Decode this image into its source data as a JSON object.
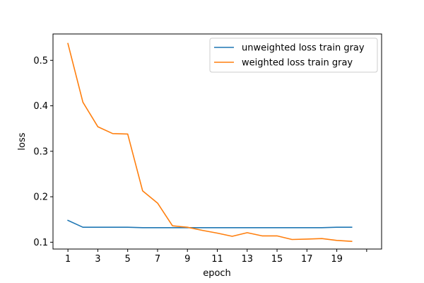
{
  "chart_data": {
    "type": "line",
    "title": "",
    "xlabel": "epoch",
    "ylabel": "loss",
    "xlim": [
      0,
      22
    ],
    "ylim": [
      0.085,
      0.558
    ],
    "x_ticks": [
      1,
      3,
      5,
      7,
      9,
      11,
      13,
      15,
      17,
      19,
      21
    ],
    "x_tick_labels": [
      "1",
      "3",
      "5",
      "7",
      "9",
      "11",
      "13",
      "15",
      "17",
      "19",
      ""
    ],
    "y_ticks": [
      0.1,
      0.2,
      0.3,
      0.4,
      0.5
    ],
    "y_tick_labels": [
      "0.1",
      "0.2",
      "0.3",
      "0.4",
      "0.5"
    ],
    "grid": false,
    "legend_position": "upper right",
    "x": [
      1,
      2,
      3,
      4,
      5,
      6,
      7,
      8,
      9,
      10,
      11,
      12,
      13,
      14,
      15,
      16,
      17,
      18,
      19,
      20
    ],
    "series": [
      {
        "name": "unweighted loss train gray",
        "color": "#1f77b4",
        "values": [
          0.148,
          0.133,
          0.133,
          0.133,
          0.133,
          0.132,
          0.132,
          0.132,
          0.132,
          0.132,
          0.132,
          0.132,
          0.132,
          0.132,
          0.132,
          0.132,
          0.132,
          0.132,
          0.133,
          0.133
        ]
      },
      {
        "name": "weighted loss train gray",
        "color": "#ff7f0e",
        "values": [
          0.537,
          0.408,
          0.354,
          0.339,
          0.338,
          0.213,
          0.186,
          0.136,
          0.133,
          0.126,
          0.12,
          0.113,
          0.121,
          0.114,
          0.114,
          0.106,
          0.107,
          0.108,
          0.104,
          0.102
        ]
      }
    ]
  }
}
